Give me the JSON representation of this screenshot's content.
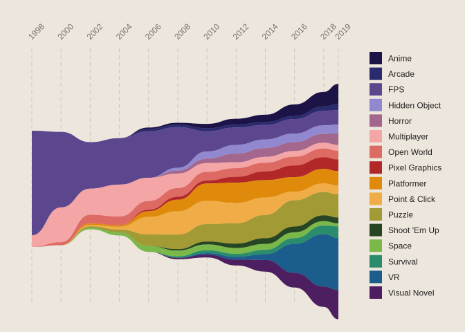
{
  "chart_data": {
    "type": "area",
    "subtype": "streamgraph",
    "title": "",
    "xlabel": "",
    "ylabel": "",
    "x": [
      1998,
      2000,
      2002,
      2004,
      2006,
      2008,
      2010,
      2012,
      2014,
      2016,
      2018,
      2019
    ],
    "tick_labels": [
      "1998",
      "2000",
      "2002",
      "2004",
      "2006",
      "2008",
      "2010",
      "2012",
      "2014",
      "2016",
      "2018",
      "2019"
    ],
    "grid": "vertical dashed",
    "legend_position": "right",
    "series": [
      {
        "name": "Anime",
        "color": "#1c1447",
        "values": [
          0,
          0,
          0,
          0,
          0.5,
          0.7,
          1.5,
          2,
          2.5,
          4,
          5,
          7
        ]
      },
      {
        "name": "Arcade",
        "color": "#2a2a6e",
        "values": [
          0,
          0,
          0,
          0,
          0.8,
          0.8,
          1,
          1,
          1,
          1,
          1.5,
          2
        ]
      },
      {
        "name": "FPS",
        "color": "#5c478f",
        "values": [
          36,
          26,
          16,
          16,
          16,
          14,
          7,
          6,
          5,
          5,
          5,
          5
        ]
      },
      {
        "name": "Hidden Object",
        "color": "#9188d0",
        "values": [
          0,
          0,
          0,
          0,
          0,
          1,
          2.5,
          3,
          3,
          3,
          3,
          3
        ]
      },
      {
        "name": "Horror",
        "color": "#a3668c",
        "values": [
          0,
          0,
          0,
          0,
          0,
          1,
          1.5,
          3,
          3,
          3,
          3,
          4
        ]
      },
      {
        "name": "Multiplayer",
        "color": "#f4a6a6",
        "values": [
          4,
          12,
          9,
          11,
          8,
          5,
          3,
          2,
          2,
          2,
          2,
          2
        ]
      },
      {
        "name": "Open World",
        "color": "#dd6b63",
        "values": [
          0,
          1,
          3,
          3,
          3,
          3,
          3,
          3,
          3,
          3,
          3,
          3
        ]
      },
      {
        "name": "Pixel Graphics",
        "color": "#b22828",
        "values": [
          0,
          0,
          0,
          0,
          0.5,
          1,
          1,
          2,
          3,
          4,
          4,
          4
        ]
      },
      {
        "name": "Platformer",
        "color": "#e08a0c",
        "values": [
          0,
          0,
          0.5,
          0.5,
          2,
          4,
          6,
          7,
          6,
          5,
          5,
          5
        ]
      },
      {
        "name": "Point & Click",
        "color": "#f0ad47",
        "values": [
          0,
          0,
          0.5,
          1,
          6,
          8,
          8,
          7,
          6,
          3,
          3,
          3
        ]
      },
      {
        "name": "Puzzle",
        "color": "#a19a35",
        "values": [
          0,
          0,
          0.5,
          1,
          4,
          5,
          6,
          7,
          8,
          9,
          8,
          8
        ]
      },
      {
        "name": "Shoot 'Em Up",
        "color": "#264522",
        "values": [
          0,
          0,
          0,
          0,
          0,
          0.5,
          1,
          1.5,
          2,
          2,
          2,
          2
        ]
      },
      {
        "name": "Space",
        "color": "#7bb84a",
        "values": [
          0,
          0,
          0.5,
          1,
          2,
          2,
          2,
          2,
          2,
          2,
          1.5,
          1
        ]
      },
      {
        "name": "Survival",
        "color": "#2a8c6c",
        "values": [
          0,
          0,
          0,
          0,
          0,
          0.5,
          1,
          1,
          1.5,
          2,
          3,
          4
        ]
      },
      {
        "name": "VR",
        "color": "#1b5d8c",
        "values": [
          0,
          0,
          0,
          0,
          0,
          0,
          0.5,
          1,
          2,
          10,
          18,
          18
        ]
      },
      {
        "name": "Visual Novel",
        "color": "#4d1f61",
        "values": [
          0,
          0,
          0,
          0,
          0,
          0.5,
          1,
          2,
          4,
          5,
          7,
          10
        ]
      }
    ]
  }
}
